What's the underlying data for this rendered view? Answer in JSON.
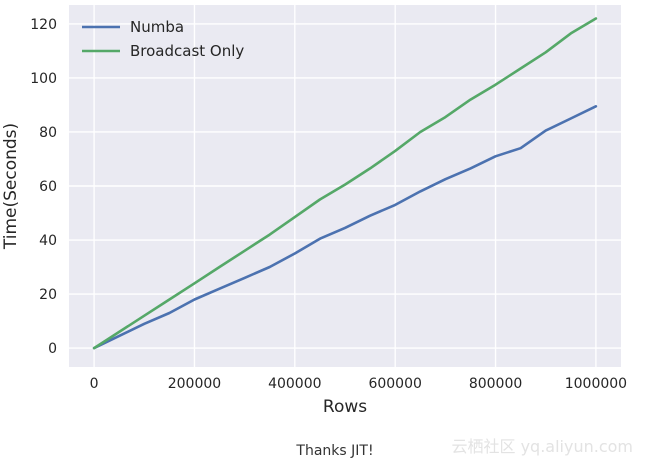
{
  "chart_data": {
    "type": "line",
    "title": "",
    "xlabel": "Rows",
    "ylabel": "Time(Seconds)",
    "xlim": [
      -50000,
      1050000
    ],
    "ylim": [
      -7,
      127
    ],
    "xticks": [
      0,
      200000,
      400000,
      600000,
      800000,
      1000000
    ],
    "xtick_labels": [
      "0",
      "200000",
      "400000",
      "600000",
      "800000",
      "1000000"
    ],
    "yticks": [
      0,
      20,
      40,
      60,
      80,
      100,
      120
    ],
    "ytick_labels": [
      "0",
      "20",
      "40",
      "60",
      "80",
      "100",
      "120"
    ],
    "grid": true,
    "legend_position": "top-left",
    "series": [
      {
        "name": "Numba",
        "color": "#4c72b0",
        "x": [
          0,
          50000,
          100000,
          150000,
          200000,
          250000,
          300000,
          350000,
          400000,
          450000,
          500000,
          550000,
          600000,
          650000,
          700000,
          750000,
          800000,
          850000,
          900000,
          950000,
          1000000
        ],
        "values": [
          0,
          4.5,
          9,
          13,
          18,
          22,
          26,
          30,
          35,
          40.5,
          44.5,
          49,
          53,
          58,
          62.5,
          66.5,
          71,
          74,
          80.5,
          85,
          89.5
        ]
      },
      {
        "name": "Broadcast Only",
        "color": "#55a868",
        "x": [
          0,
          50000,
          100000,
          150000,
          200000,
          250000,
          300000,
          350000,
          400000,
          450000,
          500000,
          550000,
          600000,
          650000,
          700000,
          750000,
          800000,
          850000,
          900000,
          950000,
          1000000
        ],
        "values": [
          0,
          6,
          12,
          18,
          24,
          30,
          36,
          42,
          48.5,
          55,
          60.5,
          66.5,
          73,
          80,
          85.5,
          92,
          97.5,
          103.5,
          109.5,
          116.5,
          122
        ]
      }
    ]
  },
  "caption": "Thanks JIT!",
  "watermark": "云栖社区 yq.aliyun.com"
}
